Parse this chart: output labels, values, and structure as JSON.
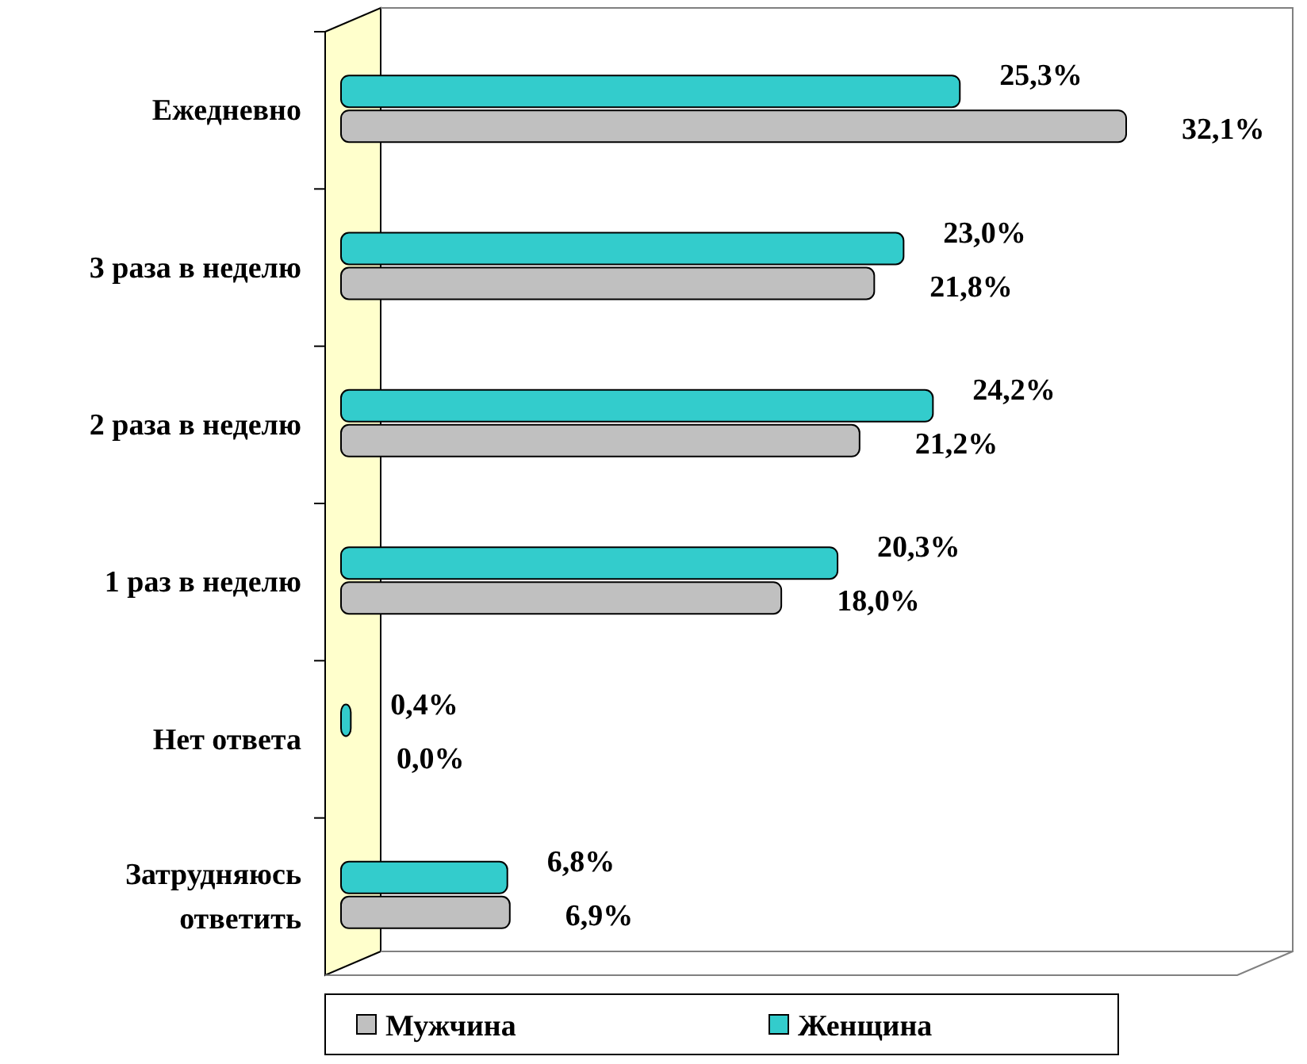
{
  "chart_data": {
    "type": "bar",
    "orientation": "horizontal",
    "categories": [
      "Ежедневно",
      "3 раза в неделю",
      "2 раза в неделю",
      "1 раз в неделю",
      "Нет ответа",
      "Затрудняюсь ответить"
    ],
    "series": [
      {
        "name": "Мужчина",
        "color": "#c0c0c0",
        "values": [
          32.1,
          21.8,
          21.2,
          18.0,
          0.0,
          6.9
        ],
        "value_labels": [
          "32,1%",
          "21,8%",
          "21,2%",
          "18,0%",
          "0,0%",
          "6,9%"
        ]
      },
      {
        "name": "Женщина",
        "color": "#33cccc",
        "values": [
          25.3,
          23.0,
          24.2,
          20.3,
          0.4,
          6.8
        ],
        "value_labels": [
          "25,3%",
          "23,0%",
          "24,2%",
          "20,3%",
          "0,4%",
          "6,8%"
        ]
      }
    ],
    "legend": "bottom",
    "grid": false
  }
}
